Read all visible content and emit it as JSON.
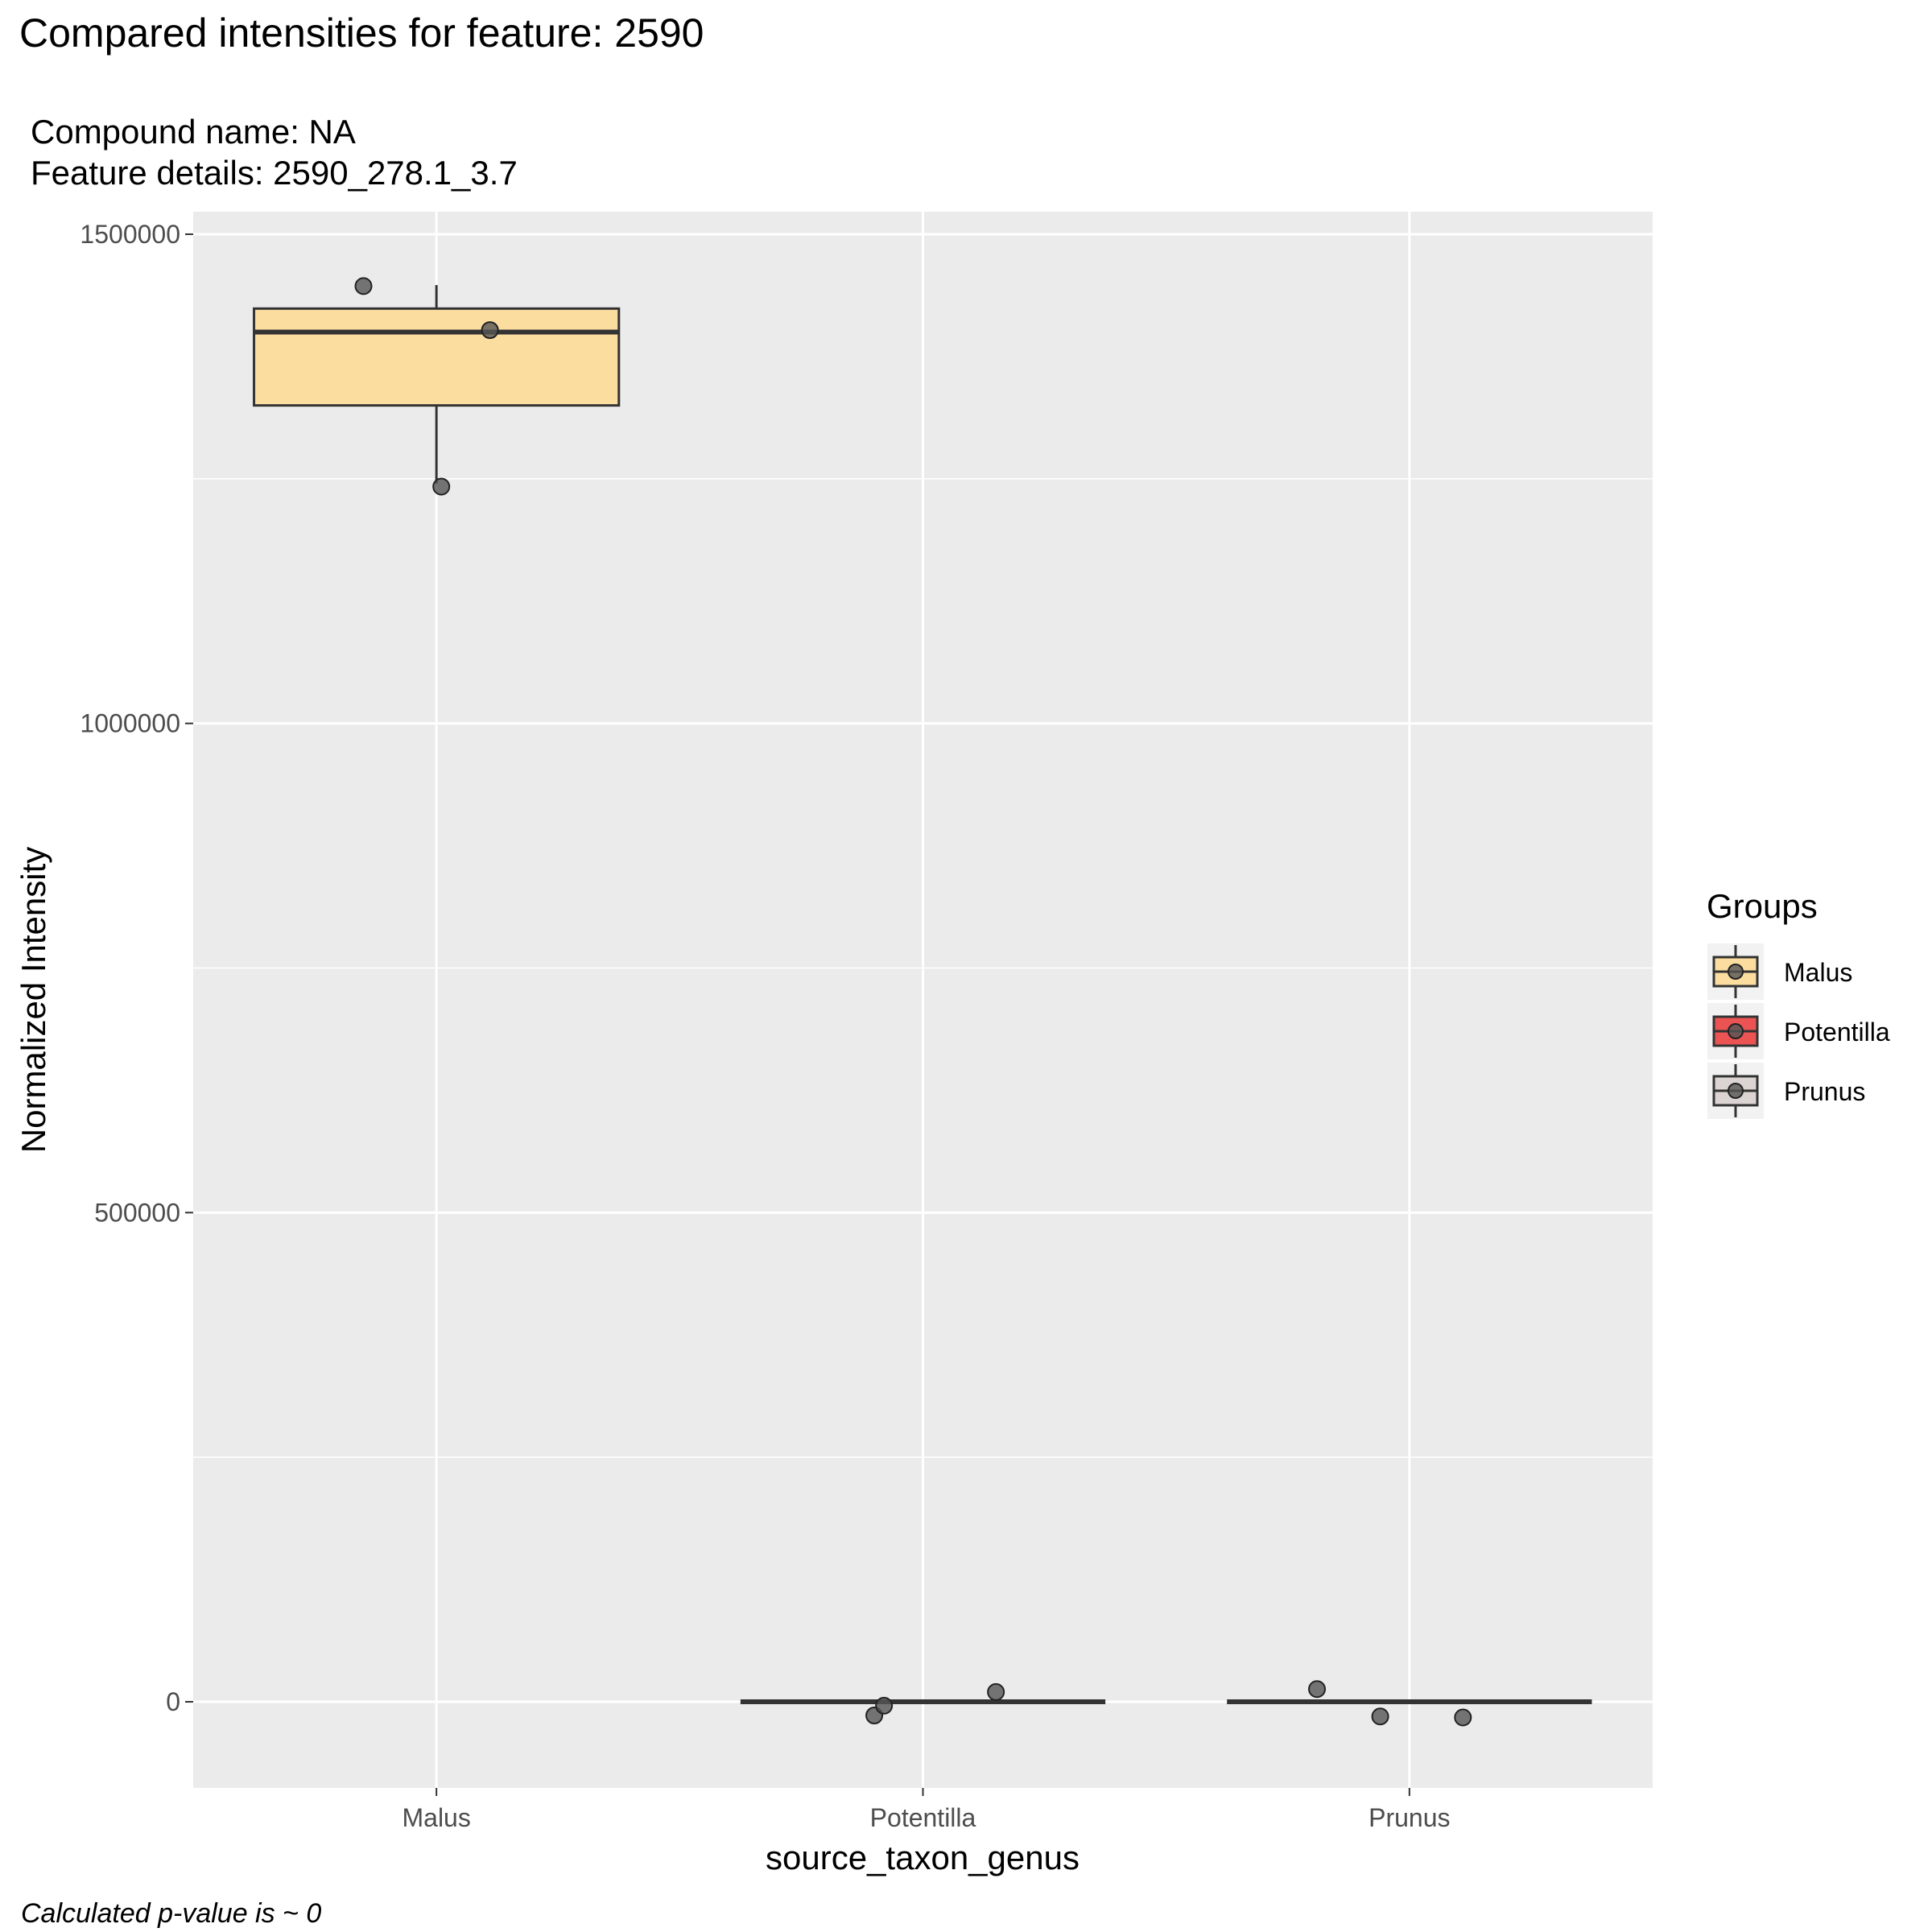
{
  "chart_data": {
    "type": "box",
    "title": "Compared intensities for feature: 2590",
    "subtitle_lines": [
      "Compound name:  NA",
      "Feature details:  2590_278.1_3.7"
    ],
    "xlabel": "source_taxon_genus",
    "ylabel": "Normalized Intensity",
    "caption": "Calculated p-value is ~  0",
    "categories": [
      "Malus",
      "Potentilla",
      "Prunus"
    ],
    "ylim": [
      -88000,
      1523000
    ],
    "y_ticks": [
      0,
      500000,
      1000000,
      1500000
    ],
    "y_tick_labels": [
      "0",
      "500000",
      "1000000",
      "1500000"
    ],
    "y_minor_ticks": [
      250000,
      750000,
      1250000
    ],
    "grid": true,
    "legend": {
      "title": "Groups",
      "position": "right",
      "items": [
        "Malus",
        "Potentilla",
        "Prunus"
      ]
    },
    "colors": {
      "Malus": "#fcdda0",
      "Potentilla": "#ec5454",
      "Prunus": "#dcd4d2",
      "panel": "#ebebeb",
      "gridline": "#ffffff",
      "box_outline": "#333333",
      "point": "#555555"
    },
    "boxes": [
      {
        "group": "Malus",
        "min": 1245000,
        "q1": 1325000,
        "median": 1400000,
        "q3": 1424000,
        "max": 1448000
      },
      {
        "group": "Potentilla",
        "min": 0,
        "q1": 0,
        "median": 0,
        "q3": 0,
        "max": 0
      },
      {
        "group": "Prunus",
        "min": 0,
        "q1": 0,
        "median": 0,
        "q3": 0,
        "max": 0
      }
    ],
    "points": [
      {
        "group": "Malus",
        "offset": -0.15,
        "y": 1447000
      },
      {
        "group": "Malus",
        "offset": 0.11,
        "y": 1402000
      },
      {
        "group": "Malus",
        "offset": 0.01,
        "y": 1242000
      },
      {
        "group": "Potentilla",
        "offset": -0.1,
        "y": -14000
      },
      {
        "group": "Potentilla",
        "offset": -0.08,
        "y": -4000
      },
      {
        "group": "Potentilla",
        "offset": 0.15,
        "y": 10000
      },
      {
        "group": "Prunus",
        "offset": -0.19,
        "y": 13000
      },
      {
        "group": "Prunus",
        "offset": -0.06,
        "y": -15000
      },
      {
        "group": "Prunus",
        "offset": 0.11,
        "y": -16000
      }
    ]
  }
}
